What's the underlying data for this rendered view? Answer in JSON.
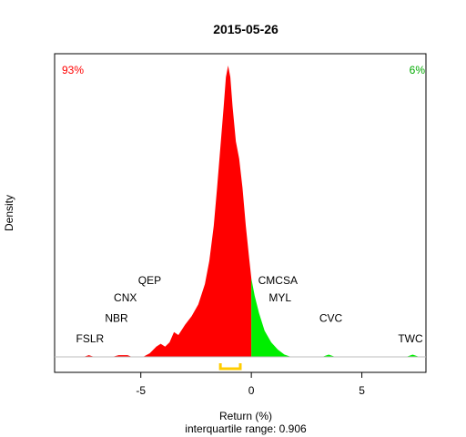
{
  "chart_data": {
    "type": "area",
    "title": "2015-05-26",
    "xlabel": "Return (%)",
    "ylabel": "Density",
    "subtitle": "interquartile range: 0.906",
    "xlim": [
      -8.9,
      7.9
    ],
    "ylim": [
      0,
      1
    ],
    "x_ticks": [
      -5,
      0,
      5
    ],
    "x_tick_labels": [
      "-5",
      "0",
      "5"
    ],
    "pct_left": "93%",
    "pct_right": "6%",
    "colors": {
      "negative": "#ff0000",
      "positive": "#00ee00",
      "iqr": "#ffcc00",
      "left_pct": "#ff0000",
      "right_pct": "#00aa00"
    },
    "split_at": 0,
    "iqr": [
      -1.4,
      -0.5
    ],
    "density": [
      [
        -7.6,
        0
      ],
      [
        -7.35,
        0.006
      ],
      [
        -7.1,
        0
      ],
      [
        -6.3,
        0
      ],
      [
        -6.0,
        0.006
      ],
      [
        -5.6,
        0.006
      ],
      [
        -5.4,
        0
      ],
      [
        -4.9,
        0
      ],
      [
        -4.6,
        0.012
      ],
      [
        -4.3,
        0.035
      ],
      [
        -4.1,
        0.045
      ],
      [
        -3.9,
        0.035
      ],
      [
        -3.7,
        0.05
      ],
      [
        -3.5,
        0.085
      ],
      [
        -3.3,
        0.075
      ],
      [
        -3.0,
        0.11
      ],
      [
        -2.7,
        0.14
      ],
      [
        -2.4,
        0.18
      ],
      [
        -2.1,
        0.25
      ],
      [
        -1.9,
        0.33
      ],
      [
        -1.7,
        0.45
      ],
      [
        -1.55,
        0.58
      ],
      [
        -1.4,
        0.72
      ],
      [
        -1.25,
        0.86
      ],
      [
        -1.15,
        0.96
      ],
      [
        -1.05,
        1.0
      ],
      [
        -0.95,
        0.96
      ],
      [
        -0.85,
        0.86
      ],
      [
        -0.7,
        0.74
      ],
      [
        -0.55,
        0.68
      ],
      [
        -0.4,
        0.58
      ],
      [
        -0.25,
        0.45
      ],
      [
        -0.1,
        0.34
      ],
      [
        0.0,
        0.27
      ],
      [
        0.15,
        0.21
      ],
      [
        0.35,
        0.15
      ],
      [
        0.6,
        0.09
      ],
      [
        0.9,
        0.05
      ],
      [
        1.2,
        0.025
      ],
      [
        1.5,
        0.008
      ],
      [
        1.8,
        0
      ],
      [
        3.2,
        0
      ],
      [
        3.5,
        0.008
      ],
      [
        3.8,
        0
      ],
      [
        7.0,
        0
      ],
      [
        7.3,
        0.008
      ],
      [
        7.6,
        0
      ]
    ],
    "annotations": [
      {
        "label": "FSLR",
        "x": -7.3,
        "y": 0.05
      },
      {
        "label": "NBR",
        "x": -6.1,
        "y": 0.12
      },
      {
        "label": "CNX",
        "x": -5.7,
        "y": 0.19
      },
      {
        "label": "QEP",
        "x": -4.6,
        "y": 0.25
      },
      {
        "label": "CMCSA",
        "x": 1.2,
        "y": 0.25
      },
      {
        "label": "MYL",
        "x": 1.3,
        "y": 0.19
      },
      {
        "label": "CVC",
        "x": 3.6,
        "y": 0.12
      },
      {
        "label": "TWC",
        "x": 7.2,
        "y": 0.05
      }
    ]
  }
}
